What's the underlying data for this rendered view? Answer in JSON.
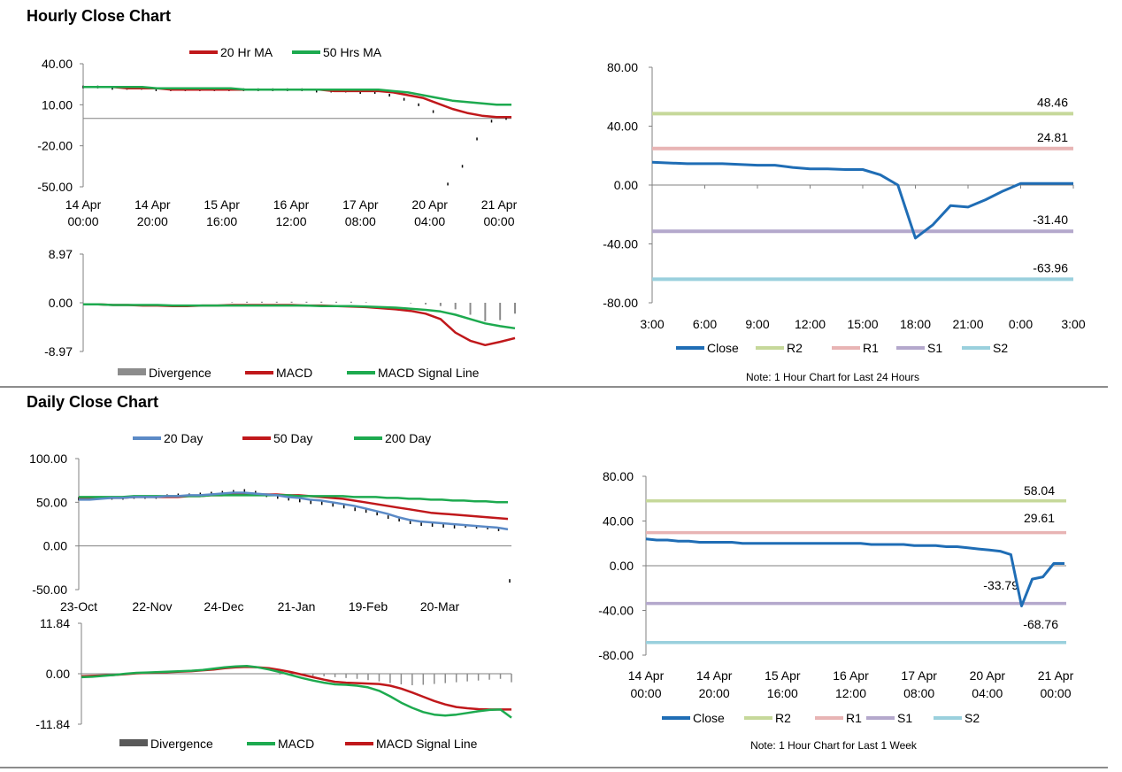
{
  "sections": {
    "hourly_title": "Hourly Close Chart",
    "daily_title": "Daily Close Chart"
  },
  "colors": {
    "ma_red": "#c0181b",
    "ma_green": "#1daa4f",
    "ma_blue": "#5b8ac6",
    "close_blue": "#1f6db5",
    "r2": "#c6d89a",
    "r1": "#e8b4b4",
    "s1": "#b4a8cc",
    "s2": "#9ad0dd",
    "div_gray": "#8c8c8c",
    "div_dark": "#595959"
  },
  "chart_data": [
    {
      "id": "hourly_price",
      "type": "line",
      "title": "",
      "legend": [
        "20 Hr MA",
        "50 Hrs MA"
      ],
      "ytick_labels": [
        "40.00",
        "10.00",
        "-20.00",
        "-50.00"
      ],
      "ylim": [
        -50,
        40
      ],
      "xtick_labels": [
        [
          "14 Apr",
          "00:00"
        ],
        [
          "14 Apr",
          "20:00"
        ],
        [
          "15 Apr",
          "16:00"
        ],
        [
          "16 Apr",
          "12:00"
        ],
        [
          "17 Apr",
          "08:00"
        ],
        [
          "20 Apr",
          "04:00"
        ],
        [
          "21 Apr",
          "00:00"
        ]
      ],
      "n": 30,
      "series": [
        {
          "name": "Close",
          "values": [
            23,
            23,
            22,
            22,
            22,
            21,
            21,
            21,
            21,
            21,
            21,
            21,
            21,
            21,
            21,
            21,
            20,
            20,
            20,
            19,
            19,
            17,
            14,
            10,
            5,
            -48,
            -35,
            -15,
            -2,
            0
          ]
        },
        {
          "name": "20 Hr MA",
          "values": [
            23,
            23,
            23,
            22,
            22,
            22,
            21,
            21,
            21,
            21,
            21,
            21,
            21,
            21,
            21,
            21,
            21,
            20,
            20,
            20,
            20,
            19,
            17,
            15,
            11,
            7,
            4,
            2,
            1,
            1
          ]
        },
        {
          "name": "50 Hrs MA",
          "values": [
            23,
            23,
            23,
            23,
            23,
            22,
            22,
            22,
            22,
            22,
            22,
            21,
            21,
            21,
            21,
            21,
            21,
            21,
            21,
            21,
            21,
            20,
            19,
            17,
            15,
            13,
            12,
            11,
            10,
            10
          ]
        }
      ]
    },
    {
      "id": "hourly_macd",
      "type": "line",
      "legend": [
        "Divergence",
        "MACD",
        "MACD Signal Line"
      ],
      "ytick_labels": [
        "8.97",
        "0.00",
        "-8.97"
      ],
      "ylim": [
        -8.97,
        8.97
      ],
      "n": 30,
      "series": [
        {
          "name": "Divergence",
          "values": [
            0,
            0,
            0,
            0,
            0,
            0,
            0,
            0,
            0,
            0,
            0.1,
            0.2,
            0.2,
            0.2,
            0.2,
            0.2,
            0.2,
            0.2,
            0.2,
            0.1,
            0,
            0,
            -0.1,
            -0.3,
            -0.6,
            -1.2,
            -2.2,
            -3.4,
            -3.2,
            -2
          ]
        },
        {
          "name": "MACD",
          "values": [
            -0.3,
            -0.3,
            -0.4,
            -0.4,
            -0.5,
            -0.5,
            -0.6,
            -0.6,
            -0.5,
            -0.5,
            -0.4,
            -0.4,
            -0.4,
            -0.4,
            -0.4,
            -0.5,
            -0.5,
            -0.6,
            -0.7,
            -0.8,
            -1,
            -1.2,
            -1.5,
            -2,
            -3,
            -5.5,
            -7,
            -7.8,
            -7.2,
            -6.5
          ]
        },
        {
          "name": "MACD Signal Line",
          "values": [
            -0.3,
            -0.3,
            -0.4,
            -0.4,
            -0.4,
            -0.4,
            -0.5,
            -0.5,
            -0.5,
            -0.5,
            -0.5,
            -0.5,
            -0.5,
            -0.5,
            -0.5,
            -0.5,
            -0.6,
            -0.6,
            -0.6,
            -0.7,
            -0.8,
            -0.9,
            -1.1,
            -1.3,
            -1.6,
            -2.2,
            -3,
            -3.8,
            -4.3,
            -4.7
          ]
        }
      ]
    },
    {
      "id": "hourly_pivot",
      "type": "line",
      "ytick_labels": [
        "80.00",
        "40.00",
        "0.00",
        "-40.00",
        "-80.00"
      ],
      "ylim": [
        -80,
        80
      ],
      "xtick_labels": [
        "3:00",
        "6:00",
        "9:00",
        "12:00",
        "15:00",
        "18:00",
        "21:00",
        "0:00",
        "3:00"
      ],
      "legend": [
        "Close",
        "R2",
        "R1",
        "S1",
        "S2"
      ],
      "levels": [
        {
          "name": "R2",
          "value": 48.46,
          "label": "48.46"
        },
        {
          "name": "R1",
          "value": 24.81,
          "label": "24.81"
        },
        {
          "name": "S1",
          "value": -31.4,
          "label": "-31.40"
        },
        {
          "name": "S2",
          "value": -63.96,
          "label": "-63.96"
        }
      ],
      "n": 25,
      "close": [
        15.5,
        15,
        14.5,
        14.5,
        14.5,
        14,
        13.5,
        13.5,
        12,
        11,
        11,
        10.5,
        10.5,
        7,
        0,
        -36,
        -27,
        -14,
        -15,
        -10,
        -4,
        1,
        1,
        1,
        1
      ],
      "note": "Note: 1 Hour Chart for Last 24 Hours"
    },
    {
      "id": "daily_price",
      "type": "line",
      "legend": [
        "20 Day",
        "50 Day",
        "200 Day"
      ],
      "ytick_labels": [
        "100.00",
        "50.00",
        "0.00",
        "-50.00"
      ],
      "ylim": [
        -50,
        100
      ],
      "xtick_labels": [
        "23-Oct",
        "22-Nov",
        "24-Dec",
        "21-Jan",
        "19-Feb",
        "20-Mar"
      ],
      "n": 40,
      "series": [
        {
          "name": "Close",
          "values": [
            54,
            54,
            55,
            55,
            55,
            56,
            56,
            56,
            57,
            58,
            58,
            59,
            60,
            61,
            62,
            63,
            61,
            58,
            56,
            54,
            52,
            50,
            49,
            47,
            45,
            42,
            40,
            37,
            33,
            30,
            27,
            25,
            24,
            23,
            22,
            23,
            22,
            21,
            19,
            -40
          ]
        },
        {
          "name": "20 Day",
          "values": [
            53,
            53,
            54,
            55,
            55,
            56,
            56,
            56,
            57,
            57,
            58,
            58,
            59,
            60,
            61,
            61,
            60,
            59,
            58,
            56,
            55,
            53,
            52,
            50,
            48,
            46,
            43,
            40,
            37,
            33,
            30,
            28,
            27,
            26,
            25,
            24,
            23,
            22,
            21,
            19
          ]
        },
        {
          "name": "50 Day",
          "values": [
            55,
            55,
            55,
            55,
            55,
            56,
            56,
            56,
            56,
            56,
            57,
            57,
            58,
            58,
            59,
            59,
            59,
            59,
            59,
            58,
            58,
            57,
            56,
            55,
            54,
            52,
            50,
            48,
            46,
            44,
            42,
            40,
            38,
            37,
            36,
            35,
            34,
            33,
            32,
            31
          ]
        },
        {
          "name": "200 Day",
          "values": [
            56,
            56,
            56,
            56,
            56,
            57,
            57,
            57,
            57,
            57,
            57,
            57,
            58,
            58,
            58,
            58,
            58,
            58,
            58,
            58,
            57,
            57,
            57,
            57,
            57,
            56,
            56,
            56,
            55,
            55,
            54,
            54,
            53,
            53,
            52,
            52,
            51,
            51,
            50,
            50
          ]
        }
      ]
    },
    {
      "id": "daily_macd",
      "type": "line",
      "legend": [
        "Divergence",
        "MACD",
        "MACD Signal Line"
      ],
      "ytick_labels": [
        "11.84",
        "0.00",
        "-11.84"
      ],
      "ylim": [
        -11.84,
        11.84
      ],
      "n": 40,
      "series": [
        {
          "name": "Divergence",
          "values": [
            0,
            0,
            0,
            0,
            0,
            0,
            0,
            0,
            0,
            0,
            0,
            0,
            0,
            0,
            0,
            0,
            0,
            0,
            -0.2,
            -0.3,
            -0.4,
            -0.5,
            -0.6,
            -0.8,
            -1,
            -1.2,
            -1.5,
            -1.8,
            -2.2,
            -2.5,
            -2.7,
            -2.6,
            -2.4,
            -2.2,
            -2,
            -1.8,
            -1.6,
            -1.4,
            -1.2,
            -2
          ]
        },
        {
          "name": "MACD",
          "values": [
            -0.8,
            -0.7,
            -0.5,
            -0.3,
            0,
            0.2,
            0.3,
            0.4,
            0.5,
            0.6,
            0.7,
            0.9,
            1.2,
            1.5,
            1.7,
            1.8,
            1.5,
            1,
            0.4,
            -0.3,
            -1,
            -1.6,
            -2.1,
            -2.5,
            -2.6,
            -2.8,
            -3.2,
            -4,
            -5.3,
            -6.8,
            -8,
            -9,
            -9.6,
            -9.8,
            -9.6,
            -9.2,
            -8.8,
            -8.5,
            -8.4,
            -10.3
          ]
        },
        {
          "name": "MACD Signal Line",
          "values": [
            -0.6,
            -0.5,
            -0.4,
            -0.3,
            -0.1,
            0.1,
            0.2,
            0.3,
            0.4,
            0.5,
            0.6,
            0.8,
            1,
            1.3,
            1.5,
            1.6,
            1.5,
            1.3,
            0.9,
            0.4,
            -0.2,
            -0.8,
            -1.4,
            -1.9,
            -2.1,
            -2.2,
            -2.3,
            -2.4,
            -2.8,
            -3.5,
            -4.4,
            -5.4,
            -6.4,
            -7.2,
            -7.8,
            -8.1,
            -8.3,
            -8.4,
            -8.4,
            -8.4
          ]
        }
      ]
    },
    {
      "id": "daily_pivot",
      "type": "line",
      "ytick_labels": [
        "80.00",
        "40.00",
        "0.00",
        "-40.00",
        "-80.00"
      ],
      "ylim": [
        -80,
        80
      ],
      "xtick_labels": [
        [
          "14 Apr",
          "00:00"
        ],
        [
          "14 Apr",
          "20:00"
        ],
        [
          "15 Apr",
          "16:00"
        ],
        [
          "16 Apr",
          "12:00"
        ],
        [
          "17 Apr",
          "08:00"
        ],
        [
          "20 Apr",
          "04:00"
        ],
        [
          "21 Apr",
          "00:00"
        ]
      ],
      "legend": [
        "Close",
        "R2",
        "R1",
        "S1",
        "S2"
      ],
      "levels": [
        {
          "name": "R2",
          "value": 58.04,
          "label": "58.04"
        },
        {
          "name": "R1",
          "value": 29.61,
          "label": "29.61"
        },
        {
          "name": "S1",
          "value": -33.79,
          "label": "-33.79"
        },
        {
          "name": "S2",
          "value": -68.76,
          "label": "-68.76"
        }
      ],
      "n": 40,
      "close": [
        24,
        23,
        23,
        22,
        22,
        21,
        21,
        21,
        21,
        20,
        20,
        20,
        20,
        20,
        20,
        20,
        20,
        20,
        20,
        20,
        20,
        19,
        19,
        19,
        19,
        18,
        18,
        18,
        17,
        17,
        16,
        15,
        14,
        13,
        10,
        -36,
        -12,
        -10,
        2,
        2
      ],
      "note": "Note: 1 Hour Chart for Last 1 Week"
    }
  ]
}
